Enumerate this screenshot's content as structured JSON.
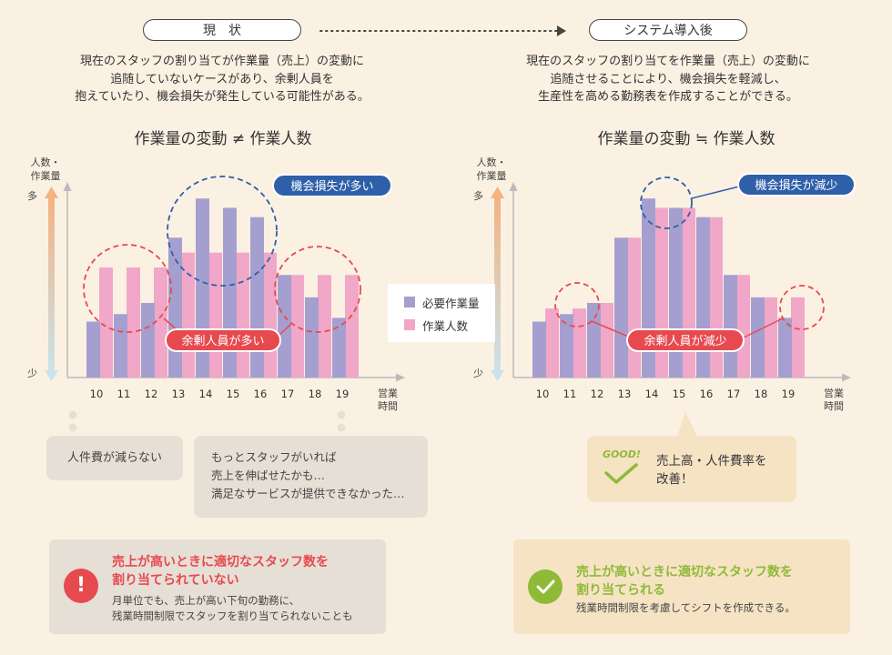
{
  "header": {
    "before_label": "現　状",
    "after_label": "システム導入後"
  },
  "left": {
    "description": [
      "現在のスタッフの割り当てが作業量（売上）の変動に",
      "追随していないケースがあり、余剰人員を",
      "抱えていたり、機会損失が発生している可能性がある。"
    ],
    "title": "作業量の変動 ≠ 作業人数",
    "callout_loss": "機会損失が多い",
    "callout_surplus": "余剰人員が多い",
    "bubble_small": "人件費が減らない",
    "bubble_large": [
      "もっとスタッフがいれば",
      "売上を伸ばせたかも…",
      "満足なサービスが提供できなかった…"
    ],
    "alert_title": [
      "売上が高いときに適切なスタッフ数を",
      "割り当てられていない"
    ],
    "alert_sub": [
      "月単位でも、売上が高い下旬の勤務に、",
      "残業時間制限でスタッフを割り当てられないことも"
    ],
    "alert_icon": "exclamation-icon",
    "alert_icon_text": "!"
  },
  "right": {
    "description": [
      "現在のスタッフの割り当てを作業量（売上）の変動に",
      "追随させることにより、機会損失を軽減し、",
      "生産性を高める勤務表を作成することができる。"
    ],
    "title": "作業量の変動 ≒ 作業人数",
    "callout_loss": "機会損失が減少",
    "callout_surplus": "余剰人員が減少",
    "good_label": "GOOD!",
    "good_text": [
      "売上高・人件費率を",
      "改善！"
    ],
    "alert_title": [
      "売上が高いときに適切なスタッフ数を",
      "割り当てられる"
    ],
    "alert_sub": [
      "残業時間制限を考慮してシフトを作成できる。"
    ],
    "alert_icon": "check-icon"
  },
  "axis": {
    "ylabel": [
      "人数・",
      "作業量"
    ],
    "y_high": "多",
    "y_low": "少",
    "xlabel": [
      "営業",
      "時間"
    ]
  },
  "legend": {
    "series1": "必要作業量",
    "series2": "作業人数"
  },
  "colors": {
    "bg": "#fbf1e3",
    "series1": "#a59fd0",
    "series2": "#f0a7c8",
    "red": "#e64a4f",
    "blue": "#2f5fa8",
    "green": "#8fba38",
    "ok_box": "#f6e3c4",
    "ng_box": "#e6dfd6"
  },
  "chart_data": [
    {
      "type": "bar",
      "title": "作業量の変動 ≠ 作業人数",
      "categories": [
        "10",
        "11",
        "12",
        "13",
        "14",
        "15",
        "16",
        "17",
        "18",
        "19"
      ],
      "xlabel": "営業時間",
      "ylabel": "人数・作業量",
      "series": [
        {
          "name": "必要作業量",
          "values": [
            30,
            34,
            40,
            75,
            96,
            91,
            86,
            55,
            43,
            32
          ]
        },
        {
          "name": "作業人数",
          "values": [
            59,
            59,
            59,
            67,
            67,
            67,
            67,
            55,
            55,
            55
          ]
        }
      ],
      "ylim": [
        0,
        100
      ],
      "grid": false,
      "legend_position": "right"
    },
    {
      "type": "bar",
      "title": "作業量の変動 ≒ 作業人数",
      "categories": [
        "10",
        "11",
        "12",
        "13",
        "14",
        "15",
        "16",
        "17",
        "18",
        "19"
      ],
      "xlabel": "営業時間",
      "ylabel": "人数・作業量",
      "series": [
        {
          "name": "必要作業量",
          "values": [
            30,
            34,
            40,
            75,
            96,
            91,
            86,
            55,
            43,
            32
          ]
        },
        {
          "name": "作業人数",
          "values": [
            37,
            37,
            40,
            75,
            91,
            91,
            86,
            55,
            43,
            43
          ]
        }
      ],
      "ylim": [
        0,
        100
      ],
      "grid": false,
      "legend_position": "none"
    }
  ]
}
